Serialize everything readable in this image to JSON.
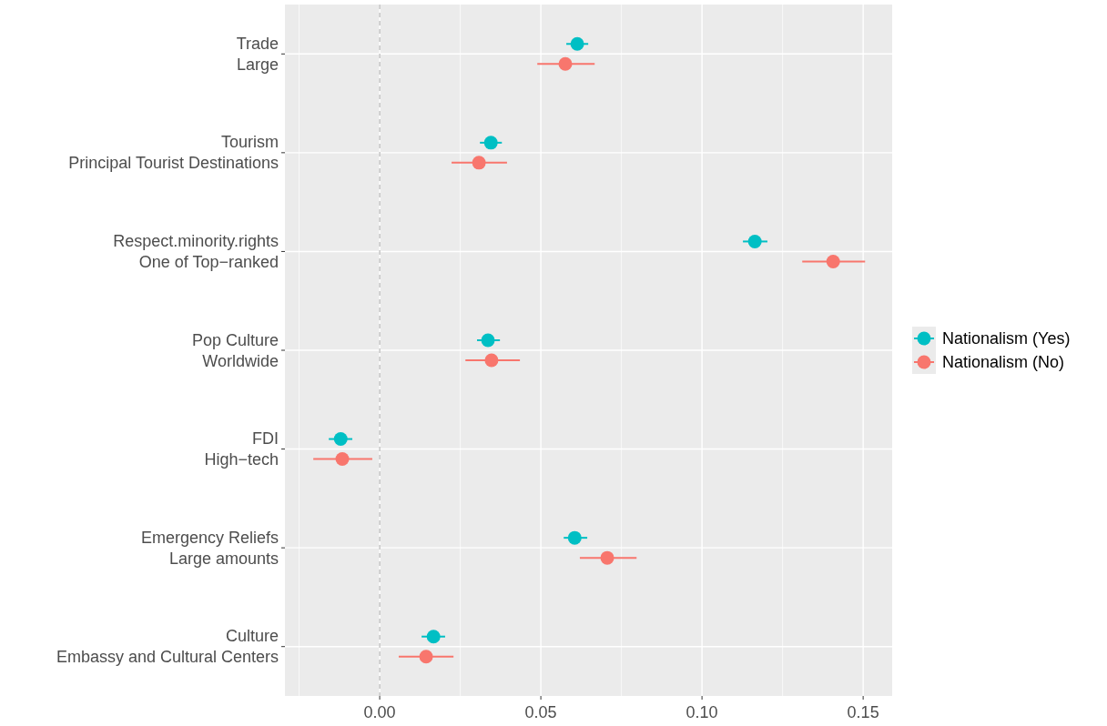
{
  "chart_data": {
    "type": "scatter",
    "orientation": "horizontal",
    "marker": "circle",
    "categories": [
      "Trade\nLarge",
      "Tourism\nPrincipal Tourist Destinations",
      "Respect.minority.rights\nOne of Top−ranked",
      "Pop Culture\nWorldwide",
      "FDI\nHigh−tech",
      "Emergency Reliefs\nLarge amounts",
      "Culture\nEmbassy and Cultural Centers"
    ],
    "series": [
      {
        "name": "Nationalism (Yes)",
        "color": "#00bfc4",
        "values": [
          0.0613,
          0.0345,
          0.1164,
          0.0336,
          -0.0121,
          0.0605,
          0.0167
        ],
        "errors": [
          [
            0.0579,
            0.0647
          ],
          [
            0.0311,
            0.0379
          ],
          [
            0.1127,
            0.1203
          ],
          [
            0.0302,
            0.0373
          ],
          [
            -0.0158,
            -0.0085
          ],
          [
            0.0571,
            0.0644
          ],
          [
            0.013,
            0.0203
          ]
        ]
      },
      {
        "name": "Nationalism (No)",
        "color": "#f8766d",
        "values": [
          0.0576,
          0.0308,
          0.1407,
          0.0347,
          -0.0116,
          0.0706,
          0.0144
        ],
        "errors": [
          [
            0.0489,
            0.0667
          ],
          [
            0.0223,
            0.0395
          ],
          [
            0.1311,
            0.1506
          ],
          [
            0.0266,
            0.0435
          ],
          [
            -0.0206,
            -0.0023
          ],
          [
            0.0621,
            0.0797
          ],
          [
            0.0059,
            0.0229
          ]
        ]
      }
    ],
    "xlim": [
      -0.0294,
      0.159
    ],
    "xticks": [
      {
        "value": 0,
        "label": "0.00"
      },
      {
        "value": 0.05,
        "label": "0.05"
      },
      {
        "value": 0.1,
        "label": "0.10"
      },
      {
        "value": 0.15,
        "label": "0.15"
      }
    ],
    "ref_lines": [
      {
        "axis": "x",
        "value": 0,
        "color": "#aaaaaa",
        "line_style": "dashed"
      }
    ],
    "grid": true,
    "legend": "right"
  }
}
